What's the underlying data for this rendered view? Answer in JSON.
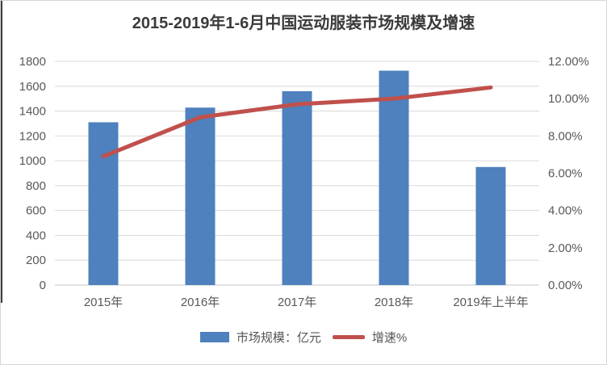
{
  "title": "2015-2019年1-6月中国运动服装市场规模及增速",
  "colors": {
    "bar": "#4E81BD",
    "line": "#C0504D",
    "grid": "#D9D9D9",
    "axis_line": "#C6C6C6",
    "axis_text": "#595959",
    "title_text": "#3A3A3A",
    "legend_text": "#555555",
    "left_edge": "#3D3D3D",
    "frame_border": "#D6D6D6"
  },
  "chart_data": {
    "type": "bar+line",
    "title": "2015-2019年1-6月中国运动服装市场规模及增速",
    "categories": [
      "2015年",
      "2016年",
      "2017年",
      "2018年",
      "2019年上半年"
    ],
    "series": [
      {
        "name": "市场规模：亿元",
        "type": "bar",
        "axis": "left",
        "values": [
          1310,
          1428,
          1560,
          1725,
          950
        ]
      },
      {
        "name": "增速%",
        "type": "line",
        "axis": "right",
        "values": [
          6.9,
          9.0,
          9.7,
          10.0,
          10.6
        ]
      }
    ],
    "left_axis": {
      "min": 0,
      "max": 1800,
      "step": 200,
      "ticks": [
        "1800",
        "1600",
        "1400",
        "1200",
        "1000",
        "800",
        "600",
        "400",
        "200",
        "0"
      ]
    },
    "right_axis": {
      "min": 0,
      "max": 12,
      "step": 2,
      "ticks": [
        "12.00%",
        "10.00%",
        "8.00%",
        "6.00%",
        "4.00%",
        "2.00%",
        "0.00%"
      ]
    },
    "grid": true,
    "legend_position": "bottom",
    "legend": [
      {
        "label": "市场规模：亿元",
        "swatch": "bar"
      },
      {
        "label": "增速%",
        "swatch": "line"
      }
    ]
  }
}
